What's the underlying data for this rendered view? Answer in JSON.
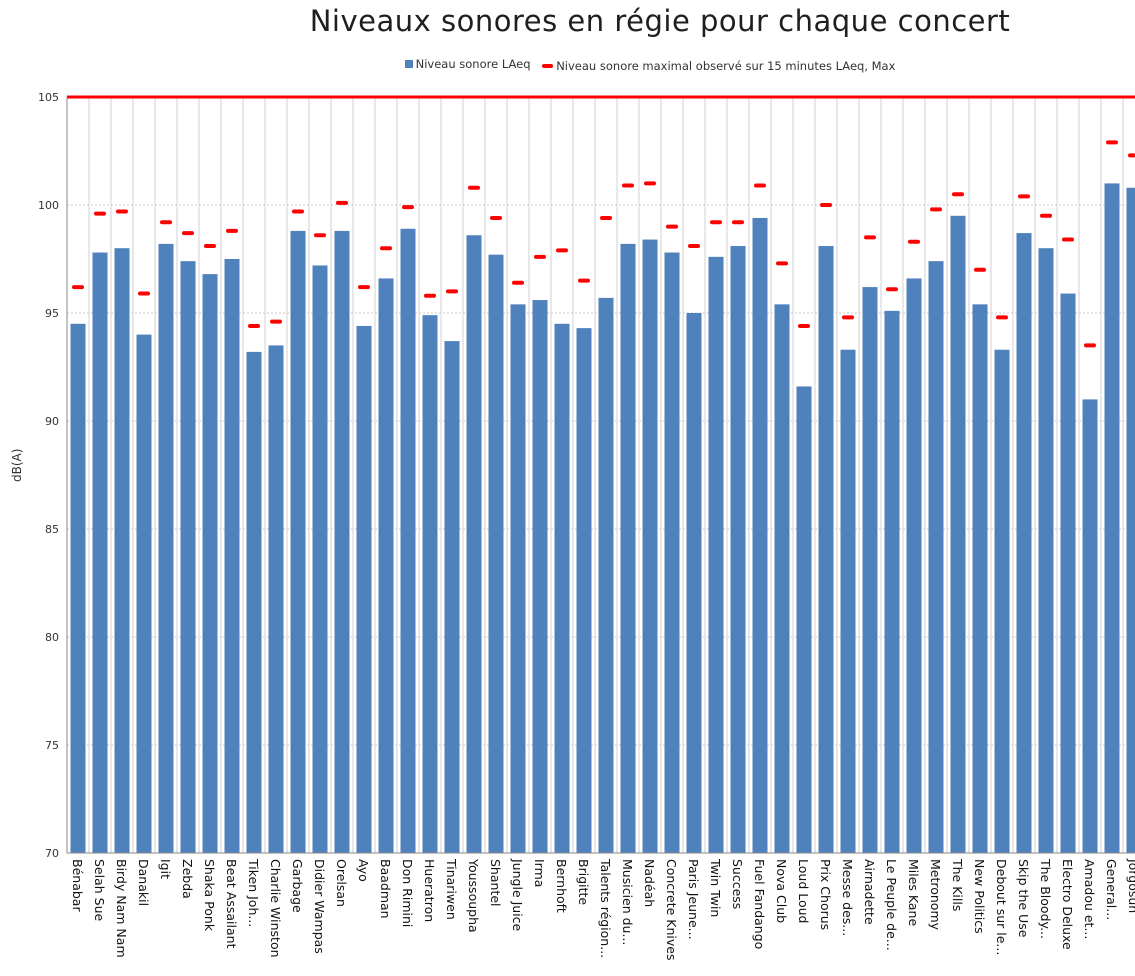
{
  "chart_data": {
    "type": "bar",
    "title": "Niveaux sonores en régie pour chaque concert",
    "xlabel": "",
    "ylabel": "dB(A)",
    "ylim": [
      70,
      105
    ],
    "yticks": [
      "70",
      "75",
      "80",
      "85",
      "90",
      "95",
      "100",
      "105"
    ],
    "grid": true,
    "legend_position": "top",
    "colors": {
      "bars": "#4f81bd",
      "max_markers": "#ff0000",
      "reference_line": "#ff0000"
    },
    "reference_line": 105,
    "categories": [
      "Bénabar",
      "Selah Sue",
      "Birdy Nam Nam",
      "Danakil",
      "Igit",
      "Zebda",
      "Shaka Ponk",
      "Beat Assailant",
      "Tiken Joh...",
      "Charlie Winston",
      "Garbage",
      "Didier Wampas",
      "Orelsan",
      "Ayo",
      "Baadman",
      "Don Rimini",
      "Hueratron",
      "Tinariwen",
      "Youssoupha",
      "Shantel",
      "Jungle Juice",
      "Irma",
      "Bernhoft",
      "Brigitte",
      "Talents région...",
      "Musicien du...",
      "Nadéah",
      "Concrete Knives",
      "Paris Jeune...",
      "Twin Twin",
      "Success",
      "Fuel Fandango",
      "Nova Club",
      "Loud Loud",
      "Prix Chorus",
      "Messe des...",
      "Airnadette",
      "Le Peuple de...",
      "Miles Kane",
      "Metronomy",
      "The Kills",
      "New Politics",
      "Debout sur le...",
      "Skip the Use",
      "The Bloody...",
      "Electro Deluxe",
      "Amadou et...",
      "General...",
      "Jorgosun"
    ],
    "series": [
      {
        "name": "Niveau sonore LAeq",
        "values": [
          94.5,
          97.8,
          98.0,
          94.0,
          98.2,
          97.4,
          96.8,
          97.5,
          93.2,
          93.5,
          98.8,
          97.2,
          98.8,
          94.4,
          96.6,
          98.9,
          94.9,
          93.7,
          98.6,
          97.7,
          95.4,
          95.6,
          94.5,
          94.3,
          95.7,
          98.2,
          98.4,
          97.8,
          95.0,
          97.6,
          98.1,
          99.4,
          95.4,
          91.6,
          98.1,
          93.3,
          96.2,
          95.1,
          96.6,
          97.4,
          99.5,
          95.4,
          93.3,
          98.7,
          98.0,
          95.9,
          91.0,
          101.0,
          100.8
        ]
      },
      {
        "name": "Niveau sonore maximal observé sur 15 minutes LAeq, Max",
        "values": [
          96.2,
          99.6,
          99.7,
          95.9,
          99.2,
          98.7,
          98.1,
          98.8,
          94.4,
          94.6,
          99.7,
          98.6,
          100.1,
          96.2,
          98.0,
          99.9,
          95.8,
          96.0,
          100.8,
          99.4,
          96.4,
          97.6,
          97.9,
          96.5,
          99.4,
          100.9,
          101.0,
          99.0,
          98.1,
          99.2,
          99.2,
          100.9,
          97.3,
          94.4,
          100.0,
          94.8,
          98.5,
          96.1,
          98.3,
          99.8,
          100.5,
          97.0,
          94.8,
          100.4,
          99.5,
          98.4,
          93.5,
          102.9,
          102.3
        ]
      }
    ]
  }
}
